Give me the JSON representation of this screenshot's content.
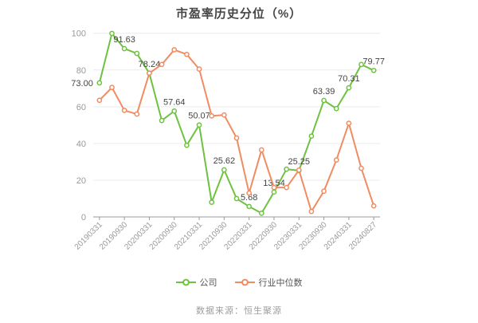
{
  "title": "市盈率历史分位（%）",
  "footer": {
    "source": "数据来源：恒生聚源"
  },
  "colors": {
    "background": "#ffffff",
    "axis": "#999999",
    "grid": "#ececec",
    "tick_text": "#999999",
    "value_label": "#444444",
    "title_text": "#464646",
    "footer_text": "#9e9e9e",
    "company_green": "#6ec23f",
    "industry_orange": "#f08c62"
  },
  "chart_data": {
    "type": "line",
    "title": "市盈率历史分位（%）",
    "x_tick_labels": [
      "20190331",
      "20190930",
      "20200331",
      "20200930",
      "20210331",
      "20210930",
      "20220331",
      "20220930",
      "20230331",
      "20230930",
      "20240331",
      "20240827"
    ],
    "points_per_tick": 2,
    "n_points": 23,
    "y_ticks": [
      0,
      20,
      40,
      60,
      80,
      100
    ],
    "ylim": [
      0,
      100
    ],
    "grid": true,
    "legend_position": "bottom",
    "series": [
      {
        "name": "公司",
        "color": "#6ec23f",
        "marker": "circle",
        "values": [
          73.0,
          99.9,
          91.63,
          89,
          78.24,
          52.5,
          57.64,
          39,
          50.07,
          8,
          25.62,
          10,
          5.68,
          2,
          13.54,
          26,
          25.25,
          44,
          63.39,
          59,
          70.31,
          83,
          79.77
        ],
        "point_labels": {
          "0": "73.00",
          "2": "91.63",
          "4": "78.24",
          "6": "57.64",
          "8": "50.07",
          "10": "25.62",
          "12": "5.68",
          "14": "13.54",
          "16": "25.25",
          "18": "63.39",
          "20": "70.31",
          "22": "79.77"
        }
      },
      {
        "name": "行业中位数",
        "color": "#f08c62",
        "marker": "circle",
        "values": [
          63.5,
          70.5,
          58,
          56,
          78.3,
          83,
          91,
          88.5,
          80.5,
          55,
          55.5,
          43,
          13,
          36.5,
          16,
          16,
          25.5,
          3,
          14,
          31,
          51,
          26.5,
          6
        ],
        "point_labels": {}
      }
    ]
  }
}
